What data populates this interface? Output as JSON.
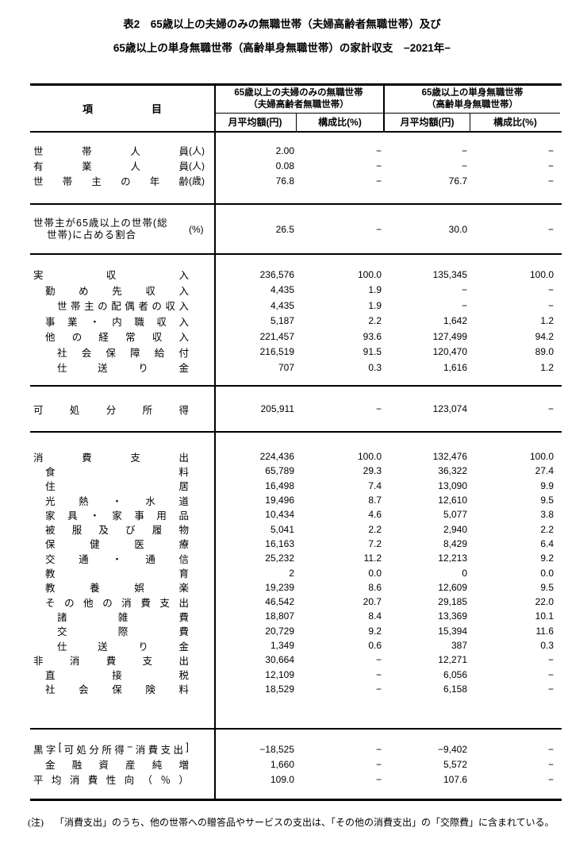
{
  "title": {
    "line1": "表2　65歳以上の夫婦のみの無職世帯（夫婦高齢者無職世帯）及び",
    "line2": "65歳以上の単身無職世帯（高齢単身無職世帯）の家計収支　−2021年−"
  },
  "header": {
    "item_label_parts": [
      "項",
      "目"
    ],
    "groups": [
      {
        "title_line1": "65歳以上の夫婦のみの無職世帯",
        "title_line2": "（夫婦高齢者無職世帯）",
        "col1": "月平均額(円)",
        "col2": "構成比(%)"
      },
      {
        "title_line1": "65歳以上の単身無職世帯",
        "title_line2": "（高齢単身無職世帯）",
        "col1": "月平均額(円)",
        "col2": "構成比(%)"
      }
    ]
  },
  "table": {
    "sections": [
      {
        "id": "household",
        "rows": [
          {
            "parts": [
              "世",
              "帯",
              "人",
              "員"
            ],
            "unit": "(人)",
            "indent": 0,
            "values": [
              "2.00",
              "−",
              "−",
              "−"
            ]
          },
          {
            "parts": [
              "有",
              "業",
              "人",
              "員"
            ],
            "unit": "(人)",
            "indent": 0,
            "values": [
              "0.08",
              "−",
              "−",
              "−"
            ]
          },
          {
            "parts": [
              "世",
              "帯",
              "主",
              "の",
              "年",
              "齢"
            ],
            "unit": "(歳)",
            "indent": 0,
            "values": [
              "76.8",
              "−",
              "76.7",
              "−"
            ]
          }
        ]
      },
      {
        "id": "ratio",
        "rows": [
          {
            "lines": [
              "世帯主が65歳以上の世帯(総",
              "世帯)に占める割合"
            ],
            "unit": "(%)",
            "values": [
              "26.5",
              "−",
              "30.0",
              "−"
            ]
          }
        ]
      },
      {
        "id": "income",
        "rows": [
          {
            "parts": [
              "実",
              "収",
              "入"
            ],
            "indent": 0,
            "values": [
              "236,576",
              "100.0",
              "135,345",
              "100.0"
            ]
          },
          {
            "parts": [
              "勤",
              "め",
              "先",
              "収",
              "入"
            ],
            "indent": 1,
            "values": [
              "4,435",
              "1.9",
              "−",
              "−"
            ]
          },
          {
            "parts": [
              "世",
              "帯",
              "主",
              "の",
              "配",
              "偶",
              "者",
              "の",
              "収",
              "入"
            ],
            "indent": 2,
            "values": [
              "4,435",
              "1.9",
              "−",
              "−"
            ]
          },
          {
            "parts": [
              "事",
              "業",
              "・",
              "内",
              "職",
              "収",
              "入"
            ],
            "indent": 1,
            "values": [
              "5,187",
              "2.2",
              "1,642",
              "1.2"
            ]
          },
          {
            "parts": [
              "他",
              "の",
              "経",
              "常",
              "収",
              "入"
            ],
            "indent": 1,
            "values": [
              "221,457",
              "93.6",
              "127,499",
              "94.2"
            ]
          },
          {
            "parts": [
              "社",
              "会",
              "保",
              "障",
              "給",
              "付"
            ],
            "indent": 2,
            "values": [
              "216,519",
              "91.5",
              "120,470",
              "89.0"
            ]
          },
          {
            "parts": [
              "仕",
              "送",
              "り",
              "金"
            ],
            "indent": 2,
            "values": [
              "707",
              "0.3",
              "1,616",
              "1.2"
            ]
          }
        ]
      },
      {
        "id": "disposable-income",
        "rows": [
          {
            "parts": [
              "可",
              "処",
              "分",
              "所",
              "得"
            ],
            "indent": 0,
            "values": [
              "205,911",
              "−",
              "123,074",
              "−"
            ]
          }
        ]
      },
      {
        "id": "expenditure",
        "rows": [
          {
            "parts": [
              "消",
              "費",
              "支",
              "出"
            ],
            "indent": 0,
            "values": [
              "224,436",
              "100.0",
              "132,476",
              "100.0"
            ]
          },
          {
            "parts": [
              "食",
              "料"
            ],
            "indent": 1,
            "values": [
              "65,789",
              "29.3",
              "36,322",
              "27.4"
            ]
          },
          {
            "parts": [
              "住",
              "居"
            ],
            "indent": 1,
            "values": [
              "16,498",
              "7.4",
              "13,090",
              "9.9"
            ]
          },
          {
            "parts": [
              "光",
              "熱",
              "・",
              "水",
              "道"
            ],
            "indent": 1,
            "values": [
              "19,496",
              "8.7",
              "12,610",
              "9.5"
            ]
          },
          {
            "parts": [
              "家",
              "具",
              "・",
              "家",
              "事",
              "用",
              "品"
            ],
            "indent": 1,
            "values": [
              "10,434",
              "4.6",
              "5,077",
              "3.8"
            ]
          },
          {
            "parts": [
              "被",
              "服",
              "及",
              "び",
              "履",
              "物"
            ],
            "indent": 1,
            "values": [
              "5,041",
              "2.2",
              "2,940",
              "2.2"
            ]
          },
          {
            "parts": [
              "保",
              "健",
              "医",
              "療"
            ],
            "indent": 1,
            "values": [
              "16,163",
              "7.2",
              "8,429",
              "6.4"
            ]
          },
          {
            "parts": [
              "交",
              "通",
              "・",
              "通",
              "信"
            ],
            "indent": 1,
            "values": [
              "25,232",
              "11.2",
              "12,213",
              "9.2"
            ]
          },
          {
            "parts": [
              "教",
              "育"
            ],
            "indent": 1,
            "values": [
              "2",
              "0.0",
              "0",
              "0.0"
            ]
          },
          {
            "parts": [
              "教",
              "養",
              "娯",
              "楽"
            ],
            "indent": 1,
            "values": [
              "19,239",
              "8.6",
              "12,609",
              "9.5"
            ]
          },
          {
            "parts": [
              "そ",
              "の",
              "他",
              "の",
              "消",
              "費",
              "支",
              "出"
            ],
            "indent": 1,
            "values": [
              "46,542",
              "20.7",
              "29,185",
              "22.0"
            ]
          },
          {
            "parts": [
              "諸",
              "雑",
              "費"
            ],
            "indent": 2,
            "values": [
              "18,807",
              "8.4",
              "13,369",
              "10.1"
            ]
          },
          {
            "parts": [
              "交",
              "際",
              "費"
            ],
            "indent": 2,
            "values": [
              "20,729",
              "9.2",
              "15,394",
              "11.6"
            ]
          },
          {
            "parts": [
              "仕",
              "送",
              "り",
              "金"
            ],
            "indent": 2,
            "values": [
              "1,349",
              "0.6",
              "387",
              "0.3"
            ]
          },
          {
            "parts": [
              "非",
              "消",
              "費",
              "支",
              "出"
            ],
            "indent": 0,
            "values": [
              "30,664",
              "−",
              "12,271",
              "−"
            ]
          },
          {
            "parts": [
              "直",
              "接",
              "税"
            ],
            "indent": 1,
            "values": [
              "12,109",
              "−",
              "6,056",
              "−"
            ]
          },
          {
            "parts": [
              "社",
              "会",
              "保",
              "険",
              "料"
            ],
            "indent": 1,
            "values": [
              "18,529",
              "−",
              "6,158",
              "−"
            ]
          }
        ]
      },
      {
        "id": "balance",
        "rows": [
          {
            "parts": [
              "黒",
              "字",
              "[",
              "可",
              "処",
              "分",
              "所",
              "得",
              "−",
              "消",
              "費",
              "支",
              "出",
              "]"
            ],
            "indent": 0,
            "values": [
              "−18,525",
              "−",
              "−9,402",
              "−"
            ]
          },
          {
            "parts": [
              "金",
              "融",
              "資",
              "産",
              "純",
              "増"
            ],
            "indent": 1,
            "values": [
              "1,660",
              "−",
              "5,572",
              "−"
            ]
          },
          {
            "parts": [
              "平",
              "均",
              "消",
              "費",
              "性",
              "向",
              "（",
              "％",
              "）"
            ],
            "indent": 0,
            "values": [
              "109.0",
              "−",
              "107.6",
              "−"
            ]
          }
        ]
      }
    ]
  },
  "note": {
    "label": "(注)",
    "text": "「消費支出」のうち、他の世帯への贈答品やサービスの支出は、「その他の消費支出」の「交際費」に含まれている。"
  }
}
